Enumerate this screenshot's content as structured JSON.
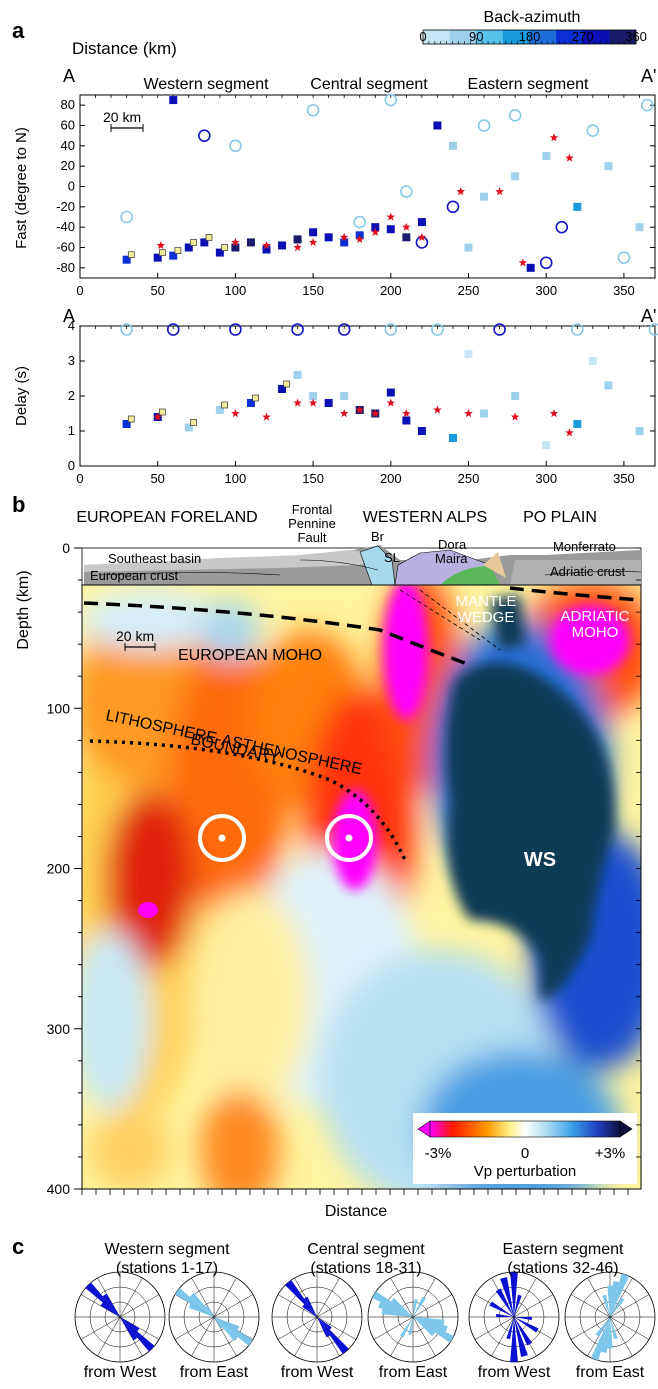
{
  "panel_labels": {
    "a": "a",
    "b": "b",
    "c": "c"
  },
  "colors": {
    "baz_bins": [
      "#c5e4f4",
      "#9fd1ec",
      "#55c3ec",
      "#1a9be0",
      "#1f6fdb",
      "#0a2fd6",
      "#0a10b4",
      "#1a1a6a"
    ],
    "star": "#e01020",
    "yellow_marker": "#f2ec9a",
    "circle_light": "#88c8e8",
    "circle_dark": "#1414c8",
    "rose_west": "#0a10d0",
    "rose_east": "#7cc6ea",
    "ws": "#0f3a57",
    "magenta": "#ff00ff"
  },
  "colorbar_a": {
    "title": "Back-azimuth",
    "ticks": [
      "0",
      "90",
      "180",
      "270",
      "360"
    ]
  },
  "panel_a": {
    "xlabel": "Distance (km)",
    "end_left": "A",
    "end_right": "A'",
    "segments": [
      "Western segment",
      "Central segment",
      "Eastern segment"
    ],
    "scalebar": "20 km",
    "x_ticks": [
      "0",
      "50",
      "100",
      "150",
      "200",
      "250",
      "300",
      "350"
    ]
  },
  "panel_b": {
    "regions": [
      "EUROPEAN FORELAND",
      "WESTERN ALPS",
      "PO PLAIN"
    ],
    "fault_label": [
      "Frontal",
      "Pennine",
      "Fault"
    ],
    "geology_labels": [
      "Southeast basin",
      "European crust",
      "Br",
      "SL",
      "Dora",
      "Maira",
      "Monferrato",
      "Adriatic crust"
    ],
    "anomaly_labels": [
      "EUROPEAN MOHO",
      "LITHOSPHERE-ASTHENOSPHERE",
      "BOUNDARY",
      "MANTLE",
      "WEDGE",
      "ADRIATIC",
      "MOHO",
      "WS"
    ],
    "scalebar": "20 km",
    "ylabel": "Depth (km)",
    "xlabel": "Distance",
    "y_ticks": [
      "0",
      "100",
      "200",
      "300",
      "400"
    ],
    "colorbar": {
      "min": "-3%",
      "mid": "0",
      "max": "+3%",
      "label": "Vp perturbation"
    }
  },
  "panel_c": {
    "groups": [
      {
        "title": "Western segment",
        "subtitle": "(stations 1-17)",
        "left": "from West",
        "right": "from East"
      },
      {
        "title": "Central segment",
        "subtitle": "(stations 18-31)",
        "left": "from West",
        "right": "from East"
      },
      {
        "title": "Eastern segment",
        "subtitle": "(stations 32-46)",
        "left": "from West",
        "right": "from East"
      }
    ],
    "rose_data": [
      {
        "west": [
          [
            -45,
            1.0
          ],
          [
            -35,
            0.6
          ],
          [
            -55,
            0.5
          ]
        ],
        "east": [
          [
            -55,
            1.0
          ],
          [
            -45,
            0.7
          ],
          [
            -65,
            0.6
          ],
          [
            -35,
            0.3
          ]
        ]
      },
      {
        "west": [
          [
            -40,
            1.0
          ],
          [
            -30,
            0.5
          ],
          [
            -50,
            0.4
          ]
        ],
        "east": [
          [
            -60,
            1.0
          ],
          [
            -70,
            0.8
          ],
          [
            -80,
            0.7
          ],
          [
            -50,
            0.6
          ],
          [
            30,
            0.5
          ],
          [
            10,
            0.4
          ]
        ]
      },
      {
        "west": [
          [
            -15,
            0.9
          ],
          [
            0,
            1.0
          ],
          [
            -30,
            0.7
          ],
          [
            15,
            0.5
          ],
          [
            -60,
            0.6
          ],
          [
            -85,
            0.4
          ]
        ],
        "east": [
          [
            20,
            1.0
          ],
          [
            10,
            0.8
          ],
          [
            0,
            0.7
          ],
          [
            -15,
            0.5
          ],
          [
            35,
            0.5
          ]
        ]
      }
    ]
  },
  "chart_data": [
    {
      "type": "scatter",
      "title": "",
      "xlabel": "Distance (km)",
      "ylabel": "Fast (degree to N)",
      "xlim": [
        0,
        370
      ],
      "ylim": [
        -90,
        90
      ],
      "y_ticks": [
        -80,
        -60,
        -40,
        -20,
        0,
        20,
        40,
        60,
        80
      ],
      "marker_legend": "color = back-azimuth (0-360)",
      "series": [
        {
          "name": "squares",
          "points": [
            [
              30,
              -72
            ],
            [
              50,
              -70
            ],
            [
              60,
              -68
            ],
            [
              70,
              -60
            ],
            [
              80,
              -55
            ],
            [
              90,
              -65
            ],
            [
              100,
              -60
            ],
            [
              110,
              -55
            ],
            [
              120,
              -62
            ],
            [
              130,
              -58
            ],
            [
              140,
              -52
            ],
            [
              150,
              -45
            ],
            [
              160,
              -50
            ],
            [
              170,
              -55
            ],
            [
              180,
              -48
            ],
            [
              190,
              -40
            ],
            [
              200,
              -42
            ],
            [
              210,
              -50
            ],
            [
              220,
              -35
            ],
            [
              240,
              40
            ],
            [
              260,
              -10
            ],
            [
              280,
              10
            ],
            [
              300,
              30
            ],
            [
              320,
              -20
            ],
            [
              340,
              20
            ],
            [
              360,
              -40
            ],
            [
              60,
              85
            ],
            [
              230,
              60
            ],
            [
              250,
              -60
            ],
            [
              290,
              -80
            ]
          ]
        },
        {
          "name": "stars",
          "points": [
            [
              52,
              -58
            ],
            [
              100,
              -55
            ],
            [
              120,
              -58
            ],
            [
              140,
              -60
            ],
            [
              150,
              -55
            ],
            [
              170,
              -50
            ],
            [
              180,
              -52
            ],
            [
              190,
              -45
            ],
            [
              200,
              -30
            ],
            [
              210,
              -40
            ],
            [
              220,
              -50
            ],
            [
              245,
              -5
            ],
            [
              270,
              -5
            ],
            [
              285,
              -75
            ],
            [
              305,
              48
            ],
            [
              315,
              28
            ]
          ]
        },
        {
          "name": "circles",
          "points": [
            [
              30,
              -30
            ],
            [
              80,
              50
            ],
            [
              100,
              40
            ],
            [
              150,
              75
            ],
            [
              180,
              -35
            ],
            [
              200,
              85
            ],
            [
              210,
              -5
            ],
            [
              220,
              -55
            ],
            [
              240,
              -20
            ],
            [
              260,
              60
            ],
            [
              280,
              70
            ],
            [
              300,
              -75
            ],
            [
              310,
              -40
            ],
            [
              330,
              55
            ],
            [
              350,
              -70
            ],
            [
              365,
              80
            ]
          ]
        }
      ]
    },
    {
      "type": "scatter",
      "title": "",
      "xlabel": "",
      "ylabel": "Delay (s)",
      "xlim": [
        0,
        370
      ],
      "ylim": [
        0,
        4
      ],
      "y_ticks": [
        0,
        1,
        2,
        3,
        4
      ],
      "series": [
        {
          "name": "squares",
          "points": [
            [
              30,
              1.2
            ],
            [
              50,
              1.4
            ],
            [
              70,
              1.1
            ],
            [
              90,
              1.6
            ],
            [
              110,
              1.8
            ],
            [
              130,
              2.2
            ],
            [
              140,
              2.6
            ],
            [
              150,
              2.0
            ],
            [
              160,
              1.8
            ],
            [
              170,
              2.0
            ],
            [
              180,
              1.6
            ],
            [
              190,
              1.5
            ],
            [
              200,
              2.1
            ],
            [
              210,
              1.3
            ],
            [
              220,
              1.0
            ],
            [
              240,
              0.8
            ],
            [
              260,
              1.5
            ],
            [
              280,
              2.0
            ],
            [
              300,
              0.6
            ],
            [
              320,
              1.2
            ],
            [
              340,
              2.3
            ],
            [
              360,
              1.0
            ],
            [
              330,
              3.0
            ],
            [
              250,
              3.2
            ]
          ]
        },
        {
          "name": "stars",
          "points": [
            [
              50,
              1.4
            ],
            [
              100,
              1.5
            ],
            [
              120,
              1.4
            ],
            [
              140,
              1.8
            ],
            [
              150,
              1.8
            ],
            [
              170,
              1.5
            ],
            [
              180,
              1.6
            ],
            [
              190,
              1.5
            ],
            [
              200,
              1.8
            ],
            [
              210,
              1.5
            ],
            [
              230,
              1.6
            ],
            [
              250,
              1.5
            ],
            [
              280,
              1.4
            ],
            [
              305,
              1.5
            ],
            [
              315,
              0.95
            ]
          ]
        },
        {
          "name": "circles",
          "points": [
            [
              30,
              3.9
            ],
            [
              60,
              3.9
            ],
            [
              100,
              3.9
            ],
            [
              140,
              3.9
            ],
            [
              170,
              3.9
            ],
            [
              200,
              3.9
            ],
            [
              230,
              3.9
            ],
            [
              270,
              3.9
            ],
            [
              320,
              3.9
            ],
            [
              370,
              3.9
            ]
          ]
        }
      ]
    },
    {
      "type": "heatmap",
      "title": "",
      "xlabel": "Distance",
      "ylabel": "Depth (km)",
      "ylim": [
        0,
        400
      ],
      "colorbar_range": [
        "-3%",
        "+3%"
      ],
      "colorbar_label": "Vp perturbation"
    }
  ]
}
